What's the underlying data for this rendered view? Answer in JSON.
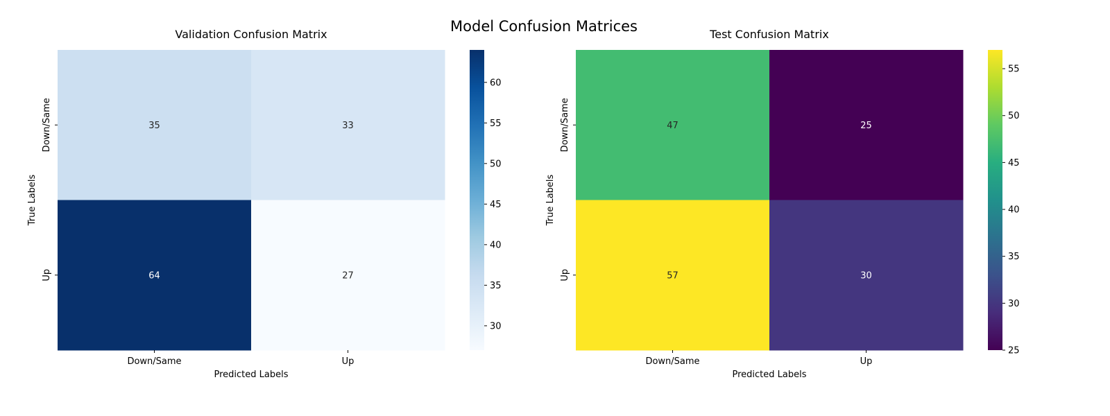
{
  "figure": {
    "title": "Model Confusion Matrices"
  },
  "chart_data": [
    {
      "type": "heatmap",
      "title": "Validation Confusion Matrix",
      "xlabel": "Predicted Labels",
      "ylabel": "True Labels",
      "x_categories": [
        "Down/Same",
        "Up"
      ],
      "y_categories": [
        "Down/Same",
        "Up"
      ],
      "values": [
        [
          35,
          33
        ],
        [
          64,
          27
        ]
      ],
      "colormap": "Blues",
      "colorbar": {
        "min": 27,
        "max": 64,
        "ticks": [
          30,
          35,
          40,
          45,
          50,
          55,
          60
        ]
      }
    },
    {
      "type": "heatmap",
      "title": "Test Confusion Matrix",
      "xlabel": "Predicted Labels",
      "ylabel": "True Labels",
      "x_categories": [
        "Down/Same",
        "Up"
      ],
      "y_categories": [
        "Down/Same",
        "Up"
      ],
      "values": [
        [
          47,
          25
        ],
        [
          57,
          30
        ]
      ],
      "colormap": "viridis",
      "colorbar": {
        "min": 25,
        "max": 57,
        "ticks": [
          25,
          30,
          35,
          40,
          45,
          50,
          55
        ]
      }
    }
  ]
}
